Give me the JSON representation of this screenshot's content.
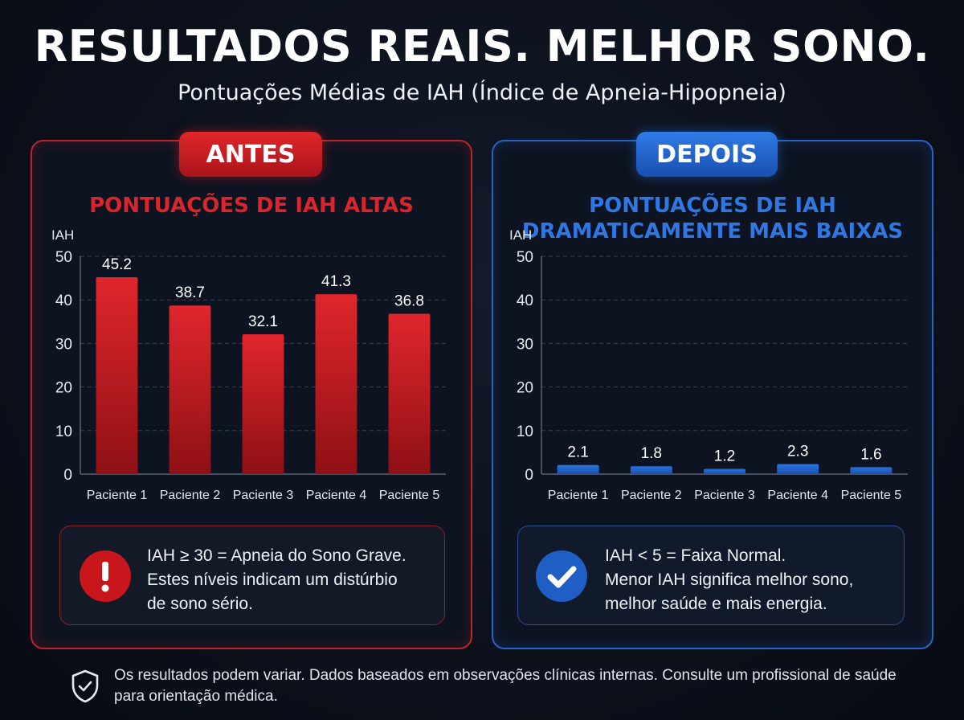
{
  "title": "RESULTADOS REAIS. MELHOR SONO.",
  "subtitle": "Pontuações Médias de IAH (Índice de Apneia-Hipopneia)",
  "colors": {
    "before_accent": "#d9262c",
    "before_bar": "#d11f25",
    "after_accent": "#2f78e4",
    "after_bar": "#1f5ec4",
    "grid": "#3a4254",
    "axis_text": "#e6e9ef"
  },
  "before": {
    "badge": "ANTES",
    "note_lines": [
      "IAH ≥ 30 = Apneia do Sono Grave.",
      "Estes níveis indicam um distúrbio",
      "de sono sério."
    ],
    "note_icon": "exclamation-icon"
  },
  "after": {
    "badge": "DEPOIS",
    "note_lines": [
      "IAH < 5 = Faixa Normal.",
      "Menor IAH significa melhor sono,",
      "melhor saúde e mais energia."
    ],
    "note_icon": "checkmark-icon"
  },
  "footer": {
    "icon": "shield-check-icon",
    "text": "Os resultados podem variar. Dados baseados em observações clínicas internas. Consulte um profissional de saúde para orientação médica."
  },
  "chart_data": [
    {
      "type": "bar",
      "title": "PONTUAÇÕES DE IAH ALTAS",
      "ylabel": "IAH",
      "categories": [
        "Paciente 1",
        "Paciente 2",
        "Paciente 3",
        "Paciente 4",
        "Paciente 5"
      ],
      "values": [
        45.2,
        38.7,
        32.1,
        41.3,
        36.8
      ],
      "value_labels": [
        "45.2",
        "38.7",
        "32.1",
        "41.3",
        "36.8"
      ],
      "ylim": [
        0,
        50
      ],
      "yticks": [
        0,
        10,
        20,
        30,
        40,
        50
      ],
      "grid": true,
      "color": "#d11f25"
    },
    {
      "type": "bar",
      "title": "PONTUAÇÕES DE IAH DRAMATICAMENTE MAIS BAIXAS",
      "ylabel": "IAH",
      "categories": [
        "Paciente 1",
        "Paciente 2",
        "Paciente 3",
        "Paciente 4",
        "Paciente 5"
      ],
      "values": [
        2.1,
        1.8,
        1.2,
        2.3,
        1.6
      ],
      "value_labels": [
        "2.1",
        "1.8",
        "1.2",
        "2.3",
        "1.6"
      ],
      "ylim": [
        0,
        50
      ],
      "yticks": [
        0,
        10,
        20,
        30,
        40,
        50
      ],
      "grid": true,
      "color": "#1f5ec4"
    }
  ]
}
